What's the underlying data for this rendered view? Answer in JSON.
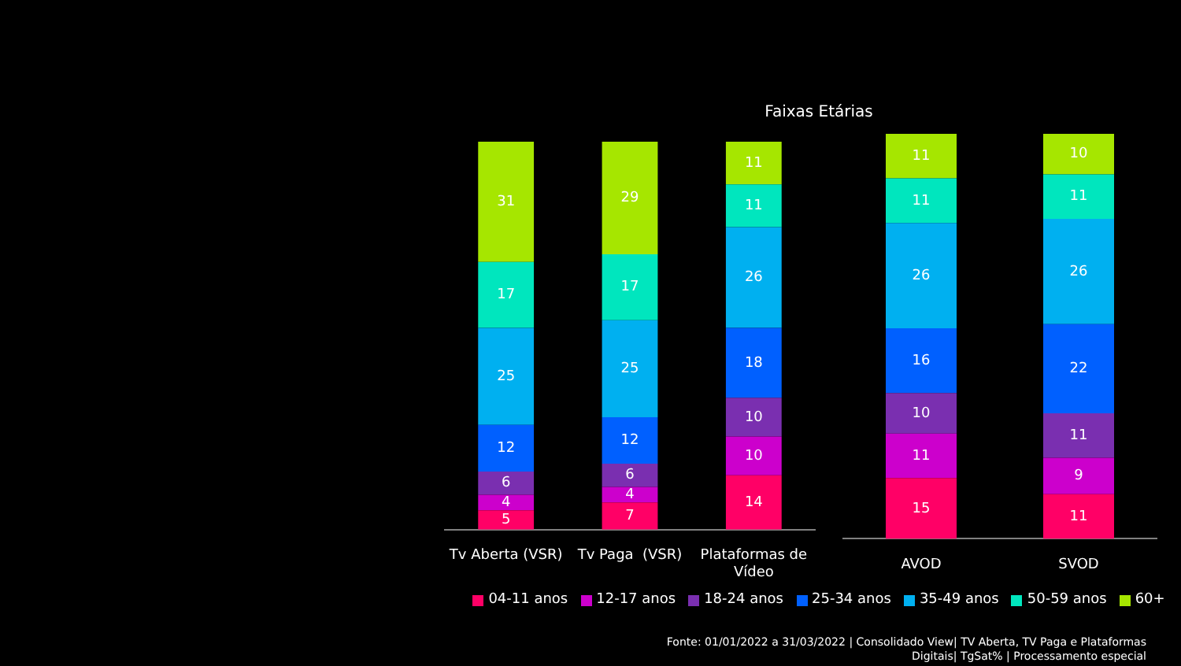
{
  "chart_data": [
    {
      "type": "bar",
      "title": "Faixas Etárias",
      "stacked": true,
      "data_labels": true,
      "legend": "bottom",
      "categories": [
        "Tv Aberta (VSR)",
        "Tv Paga  (VSR)",
        "Plataformas de Vídeo"
      ],
      "series": [
        {
          "name": "04-11 anos",
          "color": "#ff0066",
          "values": [
            5,
            7,
            14
          ]
        },
        {
          "name": "12-17 anos",
          "color": "#cc00cc",
          "values": [
            4,
            4,
            10
          ]
        },
        {
          "name": "18-24 anos",
          "color": "#7a2fb0",
          "values": [
            6,
            6,
            10
          ]
        },
        {
          "name": "25-34 anos",
          "color": "#0060ff",
          "values": [
            12,
            12,
            18
          ]
        },
        {
          "name": "35-49 anos",
          "color": "#00b0f0",
          "values": [
            25,
            25,
            26
          ]
        },
        {
          "name": "50-59 anos",
          "color": "#00e6be",
          "values": [
            17,
            17,
            11
          ]
        },
        {
          "name": "60+",
          "color": "#a6e600",
          "values": [
            31,
            29,
            11
          ]
        }
      ],
      "annotations": [
        "Fonte: 01/01/2022 a 31/03/2022 | Consolidado View| TV Aberta, TV Paga e Plataformas Digitais| TgSat% | Processamento especial"
      ]
    },
    {
      "type": "bar",
      "stacked": true,
      "data_labels": true,
      "categories": [
        "AVOD",
        "SVOD"
      ],
      "series": [
        {
          "color": "#ff0066",
          "values": [
            15,
            11
          ]
        },
        {
          "color": "#cc00cc",
          "values": [
            11,
            9
          ]
        },
        {
          "color": "#7a2fb0",
          "values": [
            10,
            11
          ]
        },
        {
          "color": "#0060ff",
          "values": [
            16,
            22
          ]
        },
        {
          "color": "#00b0f0",
          "values": [
            26,
            26
          ]
        },
        {
          "color": "#00e6be",
          "values": [
            11,
            11
          ]
        },
        {
          "color": "#a6e600",
          "values": [
            11,
            10
          ]
        }
      ]
    }
  ]
}
